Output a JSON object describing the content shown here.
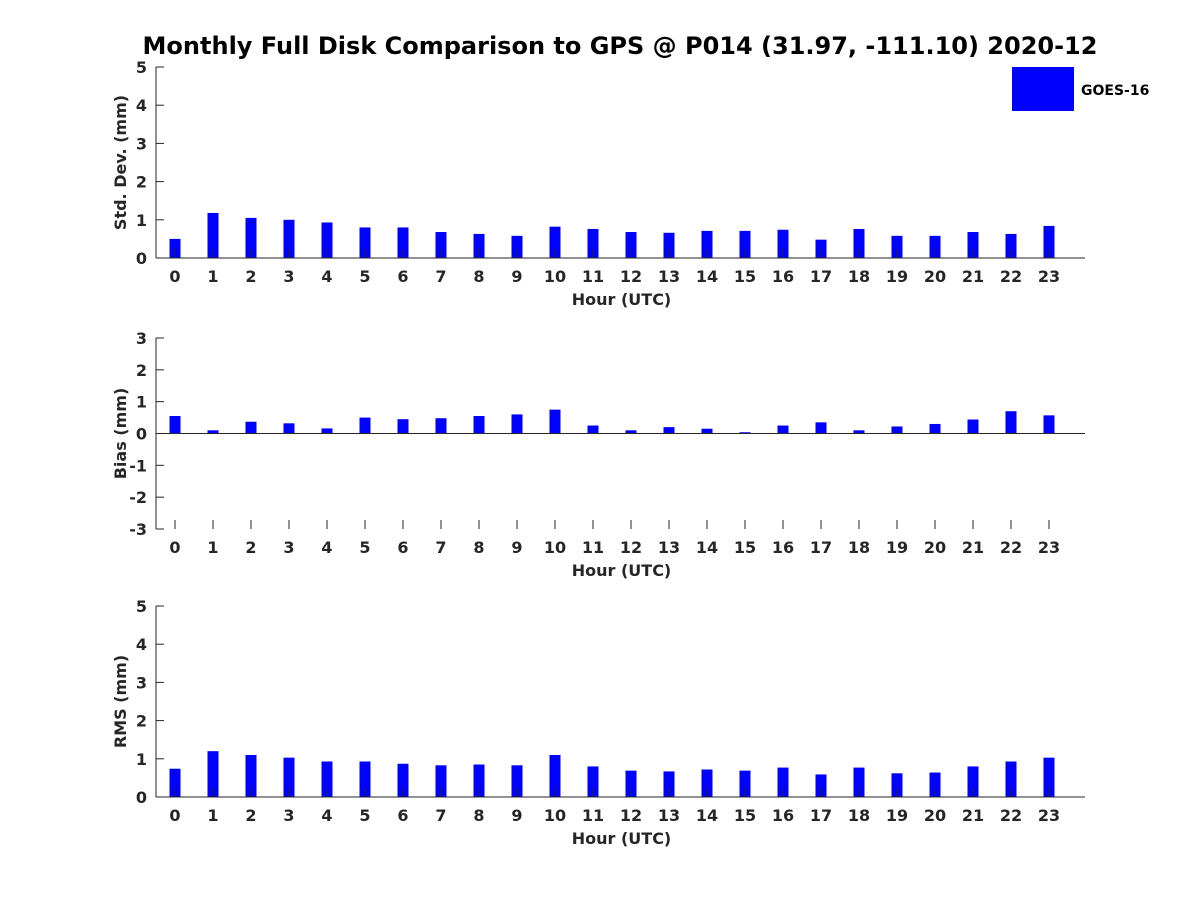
{
  "chart_data": {
    "title": "Monthly Full Disk Comparison to GPS @ P014 (31.97, -111.10) 2020-12",
    "legend": {
      "label": "GOES-16",
      "color": "#0000ff",
      "position": "top-right"
    },
    "panels": [
      {
        "type": "bar",
        "name": "std-dev",
        "ylabel": "Std. Dev. (mm)",
        "xlabel": "Hour (UTC)",
        "ylim": [
          0,
          5
        ],
        "yticks": [
          0,
          1,
          2,
          3,
          4,
          5
        ],
        "categories": [
          0,
          1,
          2,
          3,
          4,
          5,
          6,
          7,
          8,
          9,
          10,
          11,
          12,
          13,
          14,
          15,
          16,
          17,
          18,
          19,
          20,
          21,
          22,
          23
        ],
        "values": [
          0.5,
          1.18,
          1.05,
          1.0,
          0.93,
          0.8,
          0.8,
          0.68,
          0.63,
          0.58,
          0.82,
          0.76,
          0.68,
          0.66,
          0.71,
          0.71,
          0.74,
          0.48,
          0.76,
          0.58,
          0.58,
          0.68,
          0.63,
          0.84
        ]
      },
      {
        "type": "bar",
        "name": "bias",
        "ylabel": "Bias (mm)",
        "xlabel": "Hour (UTC)",
        "ylim": [
          -3,
          3
        ],
        "yticks": [
          -3,
          -2,
          -1,
          0,
          1,
          2,
          3
        ],
        "categories": [
          0,
          1,
          2,
          3,
          4,
          5,
          6,
          7,
          8,
          9,
          10,
          11,
          12,
          13,
          14,
          15,
          16,
          17,
          18,
          19,
          20,
          21,
          22,
          23
        ],
        "values": [
          0.55,
          0.1,
          0.37,
          0.32,
          0.16,
          0.5,
          0.45,
          0.48,
          0.55,
          0.6,
          0.75,
          0.25,
          0.1,
          0.2,
          0.15,
          0.04,
          0.25,
          0.35,
          0.1,
          0.22,
          0.3,
          0.44,
          0.7,
          0.57
        ]
      },
      {
        "type": "bar",
        "name": "rms",
        "ylabel": "RMS (mm)",
        "xlabel": "Hour (UTC)",
        "ylim": [
          0,
          5
        ],
        "yticks": [
          0,
          1,
          2,
          3,
          4,
          5
        ],
        "categories": [
          0,
          1,
          2,
          3,
          4,
          5,
          6,
          7,
          8,
          9,
          10,
          11,
          12,
          13,
          14,
          15,
          16,
          17,
          18,
          19,
          20,
          21,
          22,
          23
        ],
        "values": [
          0.74,
          1.2,
          1.1,
          1.03,
          0.93,
          0.93,
          0.87,
          0.83,
          0.85,
          0.83,
          1.1,
          0.8,
          0.69,
          0.67,
          0.72,
          0.69,
          0.77,
          0.59,
          0.77,
          0.62,
          0.64,
          0.8,
          0.93,
          1.03
        ]
      }
    ]
  }
}
